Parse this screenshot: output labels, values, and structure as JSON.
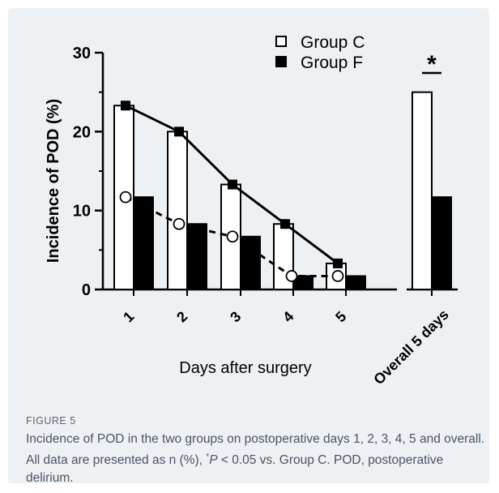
{
  "chart_data": {
    "type": "bar",
    "categories": [
      "1",
      "2",
      "3",
      "4",
      "5"
    ],
    "overall_category": "Overall 5 days",
    "ylabel": "Incidence of POD (%)",
    "xlabel": "Days after surgery",
    "ylim": [
      0,
      30
    ],
    "yticks": [
      0,
      10,
      20,
      30
    ],
    "series": [
      {
        "name": "Group C",
        "fill": "#ffffff",
        "values": [
          23.3,
          20.0,
          13.3,
          8.3,
          3.3
        ],
        "overall": 25.0,
        "line_values": [
          23.3,
          20.0,
          13.3,
          8.3,
          3.3
        ],
        "line_style": "solid",
        "marker": "square"
      },
      {
        "name": "Group F",
        "fill": "#000000",
        "values": [
          11.7,
          8.3,
          6.7,
          1.7,
          1.7
        ],
        "overall": 11.7,
        "line_values": [
          11.7,
          8.3,
          6.7,
          1.7,
          1.7
        ],
        "line_style": "dashed",
        "marker": "circle"
      }
    ],
    "significance_marker": "*",
    "legend_position": "top-center"
  },
  "caption": {
    "label": "FIGURE 5",
    "text": "Incidence of POD in the two groups on postoperative days 1, 2, 3, 4, 5 and overall. All data are presented as n (%),",
    "sig_star": "*",
    "sig_p": "P",
    "sig_rest": " < 0.05 vs. Group C. POD, postoperative delirium."
  }
}
